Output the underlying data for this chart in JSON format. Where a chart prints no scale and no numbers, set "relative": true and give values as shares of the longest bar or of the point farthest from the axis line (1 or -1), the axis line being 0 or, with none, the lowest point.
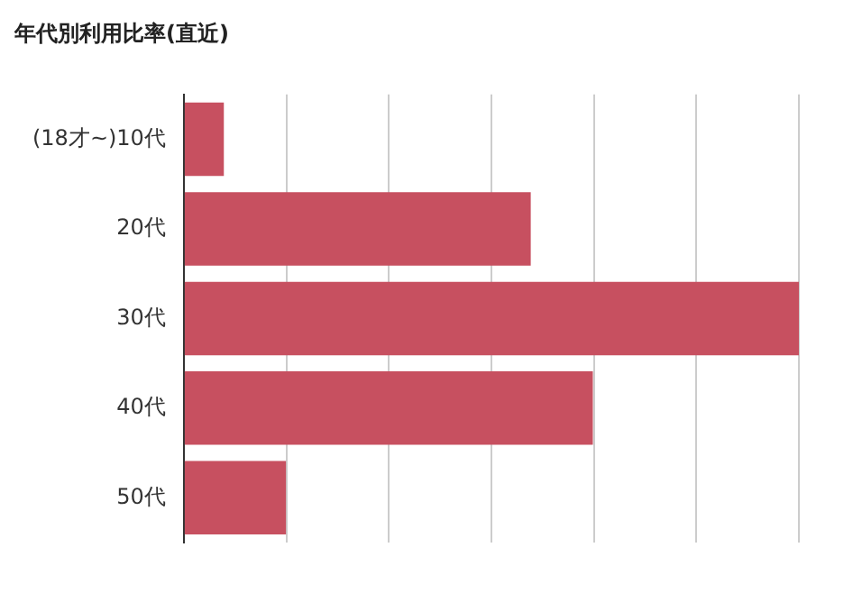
{
  "chart_data": {
    "type": "bar",
    "orientation": "horizontal",
    "relative": true,
    "title": "年代別利用比率(直近)",
    "categories": [
      "(18才~)10代",
      "20代",
      "30代",
      "40代",
      "50代"
    ],
    "values": [
      0.065,
      0.564,
      1,
      0.665,
      0.166
    ],
    "color": "#c75060",
    "grid": "x"
  }
}
